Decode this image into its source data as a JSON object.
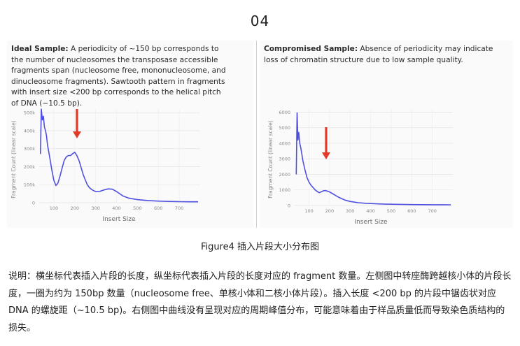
{
  "page_number": "04",
  "left_panel": {
    "heading": "Ideal Sample:",
    "body": " A periodicity of ~150 bp corresponds to the number of nucleosomes the transposase accessible fragments span (nucleosome free, mononucleosome, and dinucleosome fragments). Sawtooth pattern in fragments with insert size <200 bp corresponds to the helical pitch of DNA (~10.5 bp)."
  },
  "right_panel": {
    "heading": "Compromised Sample:",
    "body": " Absence of periodicity may indicate loss of chromatin structure due to low sample quality."
  },
  "chart_data": [
    {
      "type": "line",
      "xlabel": "Insert Size",
      "ylabel": "Fragment Count (linear scale)",
      "x_ticks": [
        "100",
        "200",
        "300",
        "400",
        "500",
        "600",
        "700"
      ],
      "y_ticks": [
        "0",
        "100k",
        "200k",
        "300k",
        "400k",
        "500k"
      ],
      "xlim": [
        30,
        800
      ],
      "ylim": [
        0,
        520000
      ],
      "annotation": "red arrow at peak near insert size 200",
      "line_color": "#5050e0",
      "series": [
        {
          "x": [
            36,
            40,
            45,
            50,
            55,
            60,
            65,
            70,
            80,
            90,
            100,
            110,
            120,
            130,
            140,
            150,
            160,
            170,
            180,
            190,
            200,
            210,
            220,
            230,
            240,
            250,
            260,
            270,
            280,
            290,
            300,
            320,
            340,
            360,
            380,
            400,
            430,
            460,
            500,
            550,
            600,
            650,
            700,
            750,
            790
          ],
          "y": [
            270000,
            520000,
            460000,
            480000,
            420000,
            400000,
            370000,
            320000,
            255000,
            185000,
            125000,
            95000,
            110000,
            150000,
            195000,
            235000,
            255000,
            262000,
            262000,
            272000,
            280000,
            262000,
            235000,
            198000,
            158000,
            128000,
            100000,
            84000,
            74000,
            67000,
            62000,
            63000,
            71000,
            77000,
            75000,
            62000,
            38000,
            25000,
            17000,
            12000,
            9000,
            7000,
            6000,
            5000,
            5000
          ]
        }
      ]
    },
    {
      "type": "line",
      "xlabel": "Insert Size",
      "ylabel": "Fragment Count (linear scale)",
      "x_ticks": [
        "100",
        "200",
        "300",
        "400",
        "500",
        "600",
        "700"
      ],
      "y_ticks": [
        "0",
        "1000",
        "2000",
        "3000",
        "4000",
        "5000",
        "6000"
      ],
      "xlim": [
        30,
        800
      ],
      "ylim": [
        0,
        6200
      ],
      "annotation": "red arrow at region near insert size 180",
      "line_color": "#5050e0",
      "series": [
        {
          "x": [
            38,
            42,
            46,
            50,
            55,
            60,
            65,
            70,
            80,
            90,
            100,
            110,
            120,
            130,
            140,
            150,
            160,
            170,
            180,
            190,
            200,
            220,
            240,
            260,
            280,
            300,
            340,
            380,
            420,
            460,
            500,
            550,
            600,
            650,
            700,
            750,
            790
          ],
          "y": [
            2000,
            5950,
            4200,
            4700,
            4000,
            3700,
            3300,
            2900,
            2300,
            1800,
            1500,
            1300,
            1150,
            1000,
            900,
            820,
            880,
            950,
            960,
            920,
            870,
            720,
            560,
            430,
            330,
            260,
            180,
            140,
            115,
            95,
            80,
            70,
            60,
            55,
            50,
            48,
            45
          ]
        }
      ]
    }
  ],
  "figure_caption": "Figure4 插入片段大小分布图",
  "explanation": "说明：横坐标代表插入片段的长度，纵坐标代表插入片段的长度对应的 fragment 数量。左侧图中转座酶跨越核小体的片段长度，一圈为约为 150bp 数量（nucleosome free、单核小体和二核小体片段）。插入长度 <200 bp 的片段中锯齿状对应 DNA 的螺旋距（~10.5 bp)。右侧图中曲线没有呈现对应的周期峰值分布，可能意味着由于样品质量低而导致染色质结构的损失。",
  "colors": {
    "line": "#5050e0",
    "arrow": "#e23a28",
    "panel_bg": "#fafafa"
  }
}
